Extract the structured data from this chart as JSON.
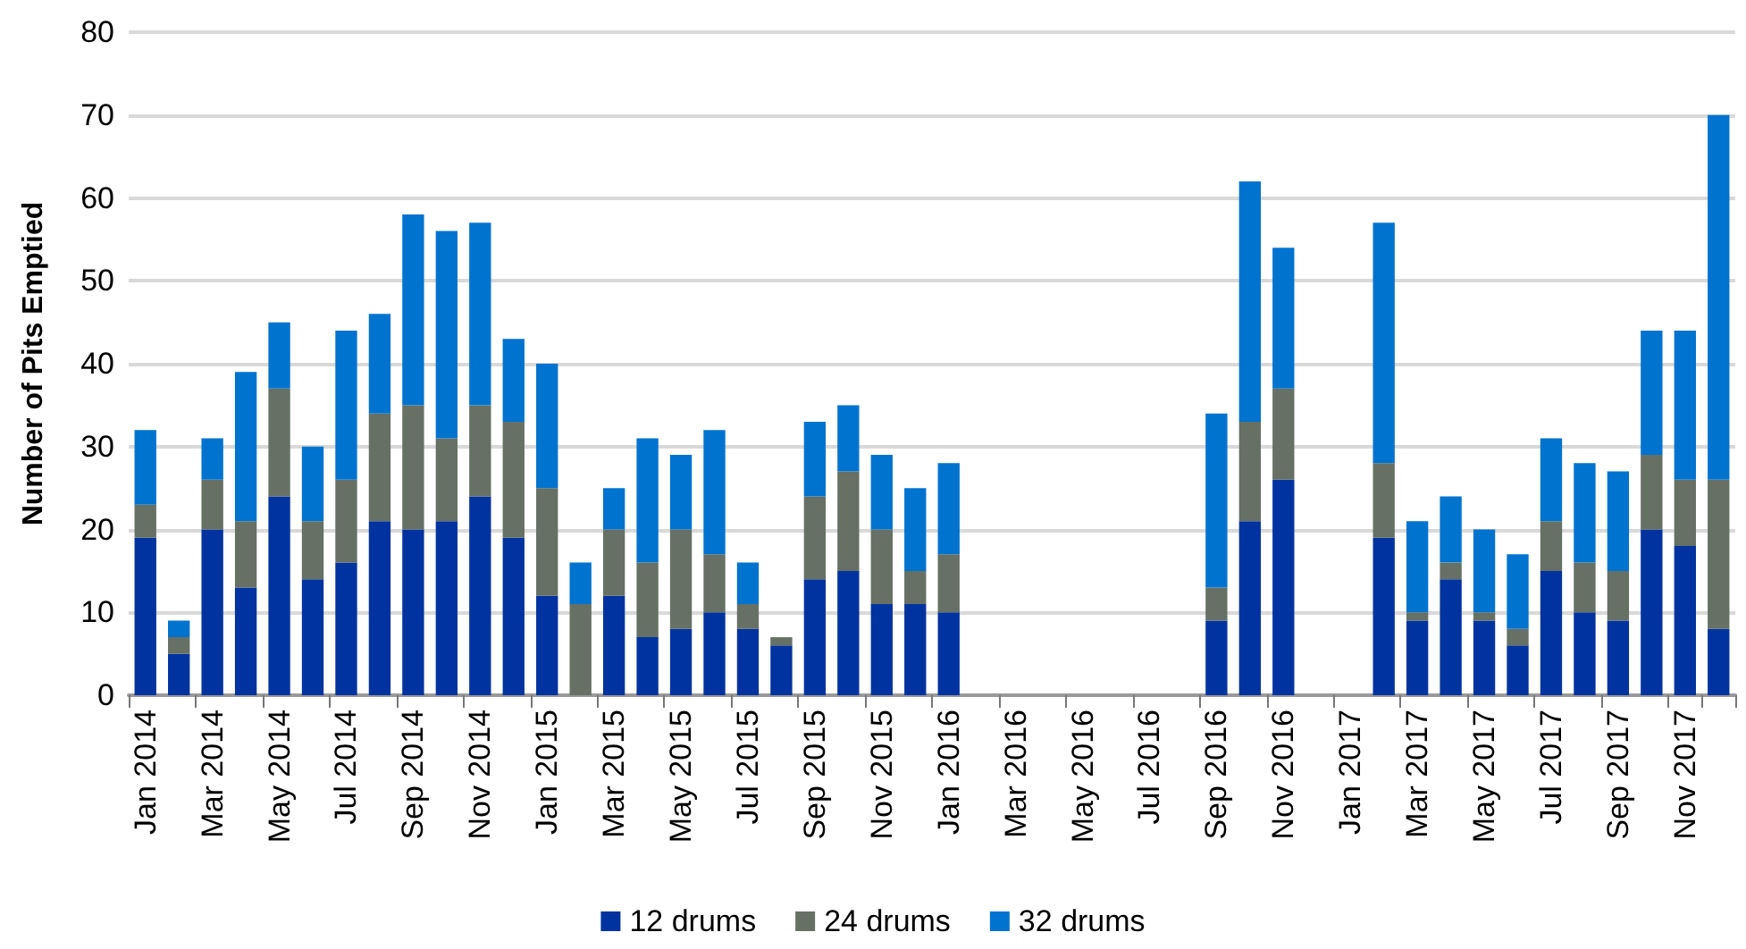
{
  "chart_data": {
    "type": "bar",
    "stacked": true,
    "ylabel": "Number of Pits Emptied",
    "categories": [
      "Jan 2014",
      null,
      "Mar 2014",
      null,
      "May 2014",
      null,
      "Jul 2014",
      null,
      "Sep 2014",
      null,
      "Nov 2014",
      null,
      "Jan 2015",
      null,
      "Mar 2015",
      null,
      "May 2015",
      null,
      "Jul 2015",
      null,
      "Sep 2015",
      null,
      "Nov 2015",
      null,
      "Jan 2016",
      null,
      "Mar 2016",
      null,
      "May 2016",
      null,
      "Jul 2016",
      null,
      "Sep 2016",
      null,
      "Nov 2016",
      null,
      "Jan 2017",
      null,
      "Mar 2017",
      null,
      "May 2017",
      null,
      "Jul 2017",
      null,
      "Sep 2017",
      null,
      "Nov 2017",
      null
    ],
    "series": [
      {
        "name": "12 drums",
        "color": "#0033a0",
        "values": [
          19,
          5,
          20,
          13,
          24,
          14,
          16,
          21,
          20,
          21,
          24,
          19,
          12,
          0,
          12,
          7,
          8,
          10,
          8,
          6,
          14,
          15,
          11,
          11,
          10,
          null,
          null,
          null,
          null,
          null,
          null,
          null,
          9,
          21,
          26,
          null,
          null,
          19,
          9,
          14,
          9,
          6,
          15,
          10,
          9,
          20,
          18,
          8
        ]
      },
      {
        "name": "24 drums",
        "color": "#667065",
        "values": [
          4,
          2,
          6,
          8,
          13,
          7,
          10,
          13,
          15,
          10,
          11,
          14,
          13,
          11,
          8,
          9,
          12,
          7,
          3,
          1,
          10,
          12,
          9,
          4,
          7,
          null,
          null,
          null,
          null,
          null,
          null,
          null,
          4,
          12,
          11,
          null,
          null,
          9,
          1,
          2,
          1,
          2,
          6,
          6,
          6,
          9,
          8,
          18
        ]
      },
      {
        "name": "32 drums",
        "color": "#0073cf",
        "values": [
          9,
          2,
          5,
          18,
          8,
          9,
          18,
          12,
          23,
          25,
          22,
          10,
          15,
          5,
          5,
          15,
          9,
          15,
          5,
          0,
          9,
          8,
          9,
          10,
          11,
          null,
          null,
          null,
          null,
          null,
          null,
          null,
          21,
          29,
          17,
          null,
          null,
          29,
          11,
          8,
          10,
          9,
          10,
          12,
          12,
          15,
          18,
          44
        ]
      }
    ],
    "ylim": [
      0,
      80
    ],
    "yticks": [
      0,
      10,
      20,
      30,
      40,
      50,
      60,
      70,
      80
    ],
    "grid": "y",
    "legend": "bottom"
  }
}
